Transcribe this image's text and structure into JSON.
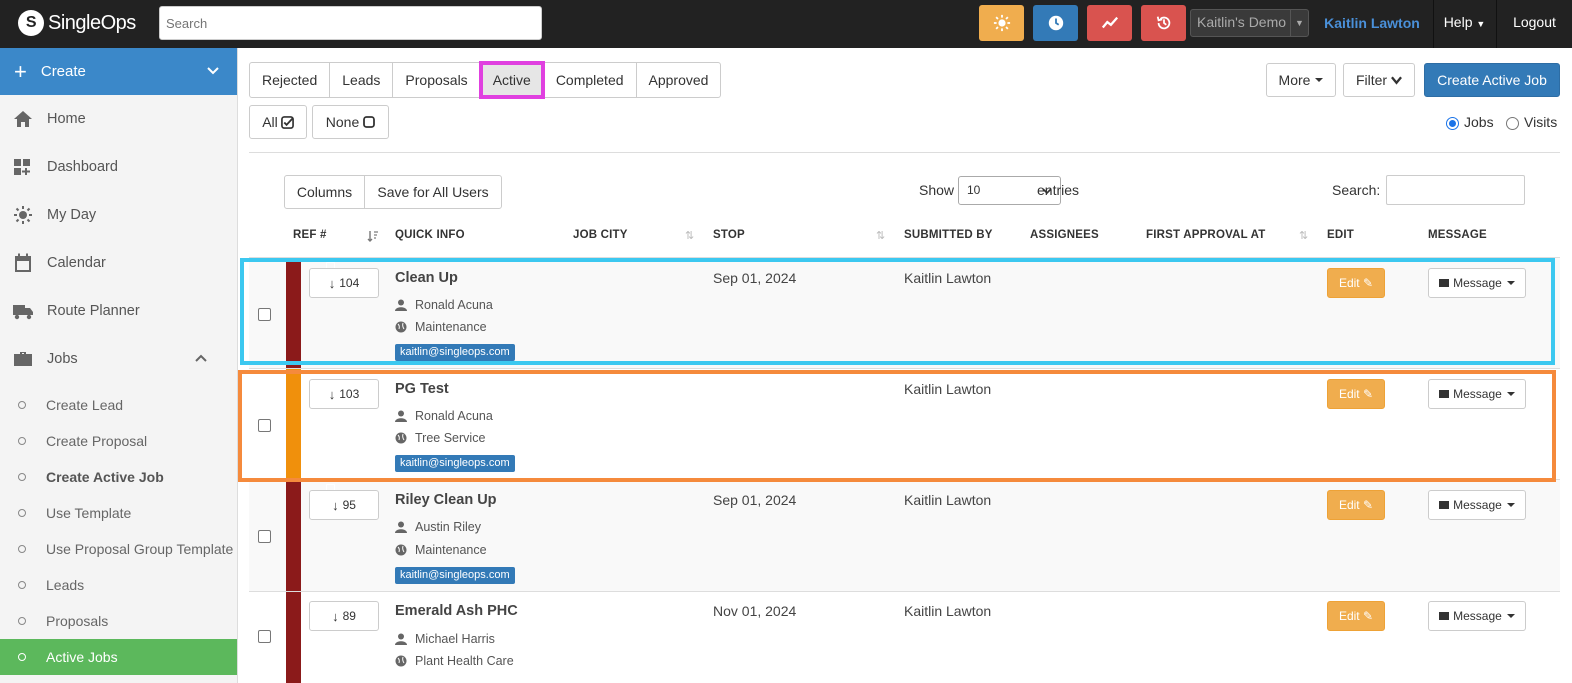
{
  "topbar": {
    "brand": "SingleOps",
    "search_placeholder": "Search",
    "account_select": "Kaitlin's Demo",
    "user": "Kaitlin Lawton",
    "help": "Help",
    "logout": "Logout",
    "buttons": [
      {
        "icon": "sun-icon",
        "color": "#f0ad4e"
      },
      {
        "icon": "clock-icon",
        "color": "#337ab7"
      },
      {
        "icon": "trend-icon",
        "color": "#d9534f"
      },
      {
        "icon": "history-icon",
        "color": "#d9534f"
      }
    ]
  },
  "sidebar": {
    "create": "Create",
    "items": [
      {
        "label": "Home",
        "icon": "home-icon"
      },
      {
        "label": "Dashboard",
        "icon": "dashboard-icon"
      },
      {
        "label": "My Day",
        "icon": "sun-icon"
      },
      {
        "label": "Calendar",
        "icon": "calendar-icon"
      },
      {
        "label": "Route Planner",
        "icon": "truck-icon"
      },
      {
        "label": "Jobs",
        "icon": "briefcase-icon"
      }
    ],
    "sub_items": [
      {
        "label": "Create Lead"
      },
      {
        "label": "Create Proposal"
      },
      {
        "label": "Create Active Job"
      },
      {
        "label": "Use Template"
      },
      {
        "label": "Use Proposal Group Template"
      },
      {
        "label": "Leads"
      },
      {
        "label": "Proposals"
      },
      {
        "label": "Active Jobs"
      }
    ]
  },
  "tabs": [
    "Rejected",
    "Leads",
    "Proposals",
    "Active",
    "Completed",
    "Approved"
  ],
  "actions": {
    "more": "More",
    "filter": "Filter",
    "create_active_job": "Create Active Job",
    "all": "All",
    "none": "None",
    "radio_jobs": "Jobs",
    "radio_visits": "Visits"
  },
  "table_controls": {
    "columns": "Columns",
    "save_all": "Save for All Users",
    "show": "Show",
    "entries_value": "10",
    "entries": "entries",
    "search": "Search:"
  },
  "columns": [
    "REF #",
    "QUICK INFO",
    "JOB CITY",
    "STOP",
    "SUBMITTED BY",
    "ASSIGNEES",
    "FIRST APPROVAL AT",
    "EDIT",
    "MESSAGE"
  ],
  "rows": [
    {
      "ref": "104",
      "title": "Clean Up",
      "person": "Ronald Acuna",
      "service": "Maintenance",
      "email": "kaitlin@singleops.com",
      "stop": "Sep 01, 2024",
      "submitted_by": "Kaitlin Lawton",
      "stripe": "#8b1a1a"
    },
    {
      "ref": "103",
      "title": "PG Test",
      "person": "Ronald Acuna",
      "service": "Tree Service",
      "email": "kaitlin@singleops.com",
      "stop": "",
      "submitted_by": "Kaitlin Lawton",
      "stripe": "#f0900c"
    },
    {
      "ref": "95",
      "title": "Riley Clean Up",
      "person": "Austin Riley",
      "service": "Maintenance",
      "email": "kaitlin@singleops.com",
      "stop": "Sep 01, 2024",
      "submitted_by": "Kaitlin Lawton",
      "stripe": "#8b1a1a"
    },
    {
      "ref": "89",
      "title": "Emerald Ash PHC",
      "person": "Michael Harris",
      "service": "Plant Health Care",
      "email": "",
      "stop": "Nov 01, 2024",
      "submitted_by": "Kaitlin Lawton",
      "stripe": "#8b1a1a"
    }
  ],
  "row_buttons": {
    "edit": "Edit",
    "message": "Message"
  }
}
